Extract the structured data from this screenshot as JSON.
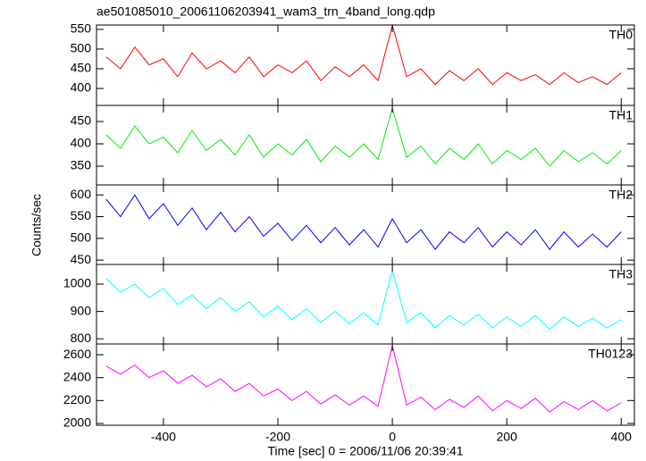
{
  "title": "ae501085010_20061106203941_wam3_trn_4band_long.qdp",
  "xlabel": "Time [sec] 0 = 2006/11/06 20:39:41",
  "ylabel": "Counts/sec",
  "chart_data": [
    {
      "type": "line",
      "label": "TH0",
      "color": "#ff0000",
      "x": [
        -500,
        -475,
        -450,
        -425,
        -400,
        -375,
        -350,
        -325,
        -300,
        -275,
        -250,
        -225,
        -200,
        -175,
        -150,
        -125,
        -100,
        -75,
        -50,
        -25,
        0,
        25,
        50,
        75,
        100,
        125,
        150,
        175,
        200,
        225,
        250,
        275,
        300,
        325,
        350,
        375,
        400
      ],
      "values": [
        480,
        450,
        505,
        460,
        475,
        430,
        490,
        450,
        470,
        440,
        480,
        430,
        460,
        440,
        470,
        420,
        455,
        430,
        460,
        420,
        560,
        430,
        450,
        410,
        445,
        420,
        450,
        410,
        440,
        420,
        435,
        410,
        440,
        415,
        430,
        410,
        440
      ],
      "xlim": [
        -517,
        423
      ],
      "xticks": [
        -400,
        -200,
        0,
        200,
        400
      ],
      "ylim": [
        357,
        561
      ],
      "yticks": [
        400,
        450,
        500,
        550
      ]
    },
    {
      "type": "line",
      "label": "TH1",
      "color": "#00ee00",
      "x": [
        -500,
        -475,
        -450,
        -425,
        -400,
        -375,
        -350,
        -325,
        -300,
        -275,
        -250,
        -225,
        -200,
        -175,
        -150,
        -125,
        -100,
        -75,
        -50,
        -25,
        0,
        25,
        50,
        75,
        100,
        125,
        150,
        175,
        200,
        225,
        250,
        275,
        300,
        325,
        350,
        375,
        400
      ],
      "values": [
        420,
        390,
        440,
        400,
        415,
        380,
        430,
        385,
        410,
        375,
        420,
        370,
        400,
        375,
        410,
        360,
        395,
        370,
        400,
        365,
        480,
        370,
        395,
        355,
        390,
        365,
        400,
        355,
        385,
        365,
        390,
        350,
        385,
        360,
        380,
        355,
        385
      ],
      "xlim": [
        -517,
        423
      ],
      "xticks": [
        -400,
        -200,
        0,
        200,
        400
      ],
      "ylim": [
        308,
        486
      ],
      "yticks": [
        350,
        400,
        450
      ]
    },
    {
      "type": "line",
      "label": "TH2",
      "color": "#0000ff",
      "x": [
        -500,
        -475,
        -450,
        -425,
        -400,
        -375,
        -350,
        -325,
        -300,
        -275,
        -250,
        -225,
        -200,
        -175,
        -150,
        -125,
        -100,
        -75,
        -50,
        -25,
        0,
        25,
        50,
        75,
        100,
        125,
        150,
        175,
        200,
        225,
        250,
        275,
        300,
        325,
        350,
        375,
        400
      ],
      "values": [
        590,
        550,
        600,
        545,
        580,
        530,
        570,
        520,
        560,
        515,
        550,
        505,
        535,
        495,
        530,
        490,
        525,
        485,
        520,
        480,
        545,
        490,
        520,
        475,
        515,
        490,
        525,
        480,
        515,
        485,
        520,
        475,
        515,
        480,
        510,
        480,
        515
      ],
      "xlim": [
        -517,
        423
      ],
      "xticks": [
        -400,
        -200,
        0,
        200,
        400
      ],
      "ylim": [
        440,
        623
      ],
      "yticks": [
        450,
        500,
        550,
        600
      ]
    },
    {
      "type": "line",
      "label": "TH3",
      "color": "#00ffff",
      "x": [
        -500,
        -475,
        -450,
        -425,
        -400,
        -375,
        -350,
        -325,
        -300,
        -275,
        -250,
        -225,
        -200,
        -175,
        -150,
        -125,
        -100,
        -75,
        -50,
        -25,
        0,
        25,
        50,
        75,
        100,
        125,
        150,
        175,
        200,
        225,
        250,
        275,
        300,
        325,
        350,
        375,
        400
      ],
      "values": [
        1020,
        970,
        1000,
        950,
        985,
        925,
        960,
        910,
        950,
        900,
        935,
        880,
        920,
        870,
        910,
        860,
        900,
        855,
        895,
        850,
        1050,
        860,
        895,
        840,
        885,
        850,
        890,
        840,
        880,
        845,
        885,
        835,
        880,
        845,
        875,
        840,
        870
      ],
      "xlim": [
        -517,
        423
      ],
      "xticks": [
        -400,
        -200,
        0,
        200,
        400
      ],
      "ylim": [
        781,
        1072
      ],
      "yticks": [
        800,
        900,
        1000
      ]
    },
    {
      "type": "line",
      "label": "TH0123",
      "color": "#ff00ff",
      "x": [
        -500,
        -475,
        -450,
        -425,
        -400,
        -375,
        -350,
        -325,
        -300,
        -275,
        -250,
        -225,
        -200,
        -175,
        -150,
        -125,
        -100,
        -75,
        -50,
        -25,
        0,
        25,
        50,
        75,
        100,
        125,
        150,
        175,
        200,
        225,
        250,
        275,
        300,
        325,
        350,
        375,
        400
      ],
      "values": [
        2500,
        2430,
        2510,
        2400,
        2460,
        2350,
        2420,
        2320,
        2390,
        2280,
        2350,
        2240,
        2300,
        2200,
        2280,
        2170,
        2250,
        2160,
        2240,
        2150,
        2680,
        2160,
        2230,
        2120,
        2210,
        2140,
        2240,
        2110,
        2200,
        2130,
        2220,
        2100,
        2190,
        2120,
        2200,
        2110,
        2180
      ],
      "xlim": [
        -517,
        423
      ],
      "xticks": [
        -400,
        -200,
        0,
        200,
        400
      ],
      "ylim": [
        1984,
        2694
      ],
      "yticks": [
        2000,
        2200,
        2400,
        2600
      ]
    }
  ]
}
